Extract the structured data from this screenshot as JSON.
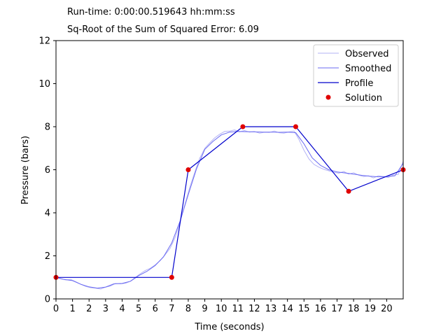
{
  "header": {
    "runtime": "Run-time: 0:00:00.519643 hh:mm:ss",
    "error": "Sq-Root of the Sum of Squared Error: 6.09"
  },
  "chart_data": {
    "type": "line",
    "title": "",
    "xlabel": "Time (seconds)",
    "ylabel": "Pressure (bars)",
    "xlim": [
      0,
      21
    ],
    "ylim": [
      0,
      12
    ],
    "xticks": [
      0,
      1,
      2,
      3,
      4,
      5,
      6,
      7,
      8,
      9,
      10,
      11,
      12,
      13,
      14,
      15,
      16,
      17,
      18,
      19,
      20
    ],
    "yticks": [
      0,
      2,
      4,
      6,
      8,
      10,
      12
    ],
    "grid": false,
    "legend_position": "top-right",
    "colors": {
      "observed": "#b3b3f5",
      "smoothed": "#6a6af2",
      "profile": "#0000cc",
      "solution": "#e00000"
    },
    "series": [
      {
        "name": "Observed",
        "x": [
          0,
          0.3,
          0.6,
          0.9,
          1.2,
          1.5,
          1.8,
          2.1,
          2.4,
          2.7,
          3.0,
          3.3,
          3.6,
          3.9,
          4.2,
          4.5,
          4.8,
          5.1,
          5.4,
          5.7,
          6.0,
          6.3,
          6.6,
          6.9,
          7.2,
          7.5,
          7.8,
          8.1,
          8.4,
          8.7,
          9.0,
          9.3,
          9.6,
          9.9,
          10.2,
          10.5,
          10.8,
          11.1,
          11.4,
          11.7,
          12.0,
          12.3,
          12.6,
          12.9,
          13.2,
          13.5,
          13.8,
          14.1,
          14.4,
          14.7,
          15.0,
          15.3,
          15.6,
          15.9,
          16.2,
          16.5,
          16.8,
          17.1,
          17.4,
          17.7,
          18.0,
          18.3,
          18.6,
          18.9,
          19.2,
          19.5,
          19.8,
          20.1,
          20.4,
          20.7,
          21.0
        ],
        "y": [
          1.02,
          0.93,
          0.88,
          0.9,
          0.8,
          0.68,
          0.58,
          0.52,
          0.5,
          0.46,
          0.55,
          0.6,
          0.72,
          0.7,
          0.73,
          0.82,
          1.0,
          1.17,
          1.32,
          1.42,
          1.58,
          1.78,
          2.05,
          2.35,
          2.85,
          3.55,
          4.4,
          5.2,
          5.9,
          6.55,
          7.0,
          7.25,
          7.48,
          7.65,
          7.78,
          7.8,
          7.85,
          7.76,
          7.82,
          7.75,
          7.78,
          7.7,
          7.74,
          7.73,
          7.8,
          7.72,
          7.7,
          7.76,
          7.8,
          7.4,
          6.9,
          6.5,
          6.25,
          6.12,
          6.02,
          5.95,
          5.88,
          5.84,
          5.92,
          5.8,
          5.86,
          5.75,
          5.68,
          5.72,
          5.62,
          5.72,
          5.68,
          5.64,
          5.76,
          5.78,
          6.4
        ]
      },
      {
        "name": "Smoothed",
        "x": [
          0,
          0.5,
          1.0,
          1.5,
          2.0,
          2.5,
          3.0,
          3.5,
          4.0,
          4.5,
          5.0,
          5.5,
          6.0,
          6.5,
          7.0,
          7.5,
          8.0,
          8.5,
          9.0,
          9.5,
          10.0,
          10.5,
          11.0,
          11.5,
          12.0,
          12.5,
          13.0,
          13.5,
          14.0,
          14.5,
          15.0,
          15.5,
          16.0,
          16.5,
          17.0,
          17.5,
          18.0,
          18.5,
          19.0,
          19.5,
          20.0,
          20.5,
          21.0
        ],
        "y": [
          1.0,
          0.9,
          0.85,
          0.68,
          0.56,
          0.5,
          0.55,
          0.7,
          0.72,
          0.82,
          1.08,
          1.28,
          1.55,
          1.95,
          2.6,
          3.6,
          4.85,
          6.05,
          6.95,
          7.32,
          7.62,
          7.75,
          7.78,
          7.77,
          7.76,
          7.75,
          7.75,
          7.74,
          7.75,
          7.72,
          7.2,
          6.55,
          6.2,
          6.0,
          5.9,
          5.85,
          5.8,
          5.74,
          5.7,
          5.67,
          5.68,
          5.72,
          6.3
        ]
      },
      {
        "name": "Profile",
        "x": [
          0,
          7,
          8,
          11.3,
          14.5,
          17.7,
          21
        ],
        "y": [
          1,
          1,
          6,
          8,
          8,
          5,
          6
        ]
      }
    ],
    "points": {
      "name": "Solution",
      "x": [
        0,
        7,
        8,
        11.3,
        14.5,
        17.7,
        21
      ],
      "y": [
        1,
        1,
        6,
        8,
        8,
        5,
        6
      ]
    }
  }
}
